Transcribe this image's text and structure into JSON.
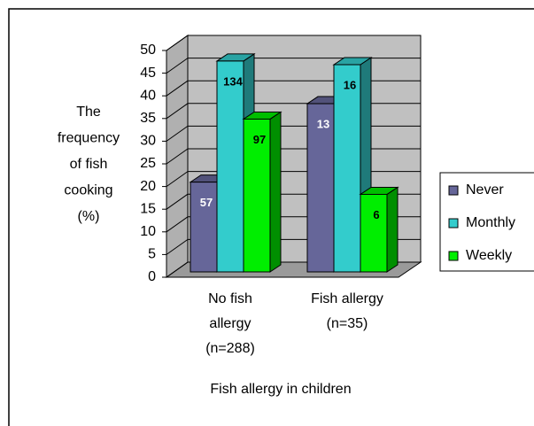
{
  "chart_data": {
    "type": "bar3d",
    "ylabel": [
      "The",
      "frequency",
      "of fish",
      "cooking",
      "(%)"
    ],
    "xlabel": "Fish allergy in children",
    "categories": [
      [
        "No fish",
        "allergy",
        "(n=288)"
      ],
      [
        "Fish allergy",
        "(n=35)"
      ]
    ],
    "series": [
      {
        "name": "Never",
        "color": "#666699",
        "label_color": "#ffffff",
        "values": [
          19.8,
          37.1
        ],
        "counts": [
          57,
          13
        ]
      },
      {
        "name": "Monthly",
        "color": "#33cccc",
        "label_color": "#000000",
        "values": [
          46.5,
          45.7
        ],
        "counts": [
          134,
          16
        ]
      },
      {
        "name": "Weekly",
        "color": "#00ee00",
        "label_color": "#000000",
        "values": [
          33.7,
          17.1
        ],
        "counts": [
          97,
          6
        ]
      }
    ],
    "ylim": [
      0,
      50
    ],
    "yticks": [
      0,
      5,
      10,
      15,
      20,
      25,
      30,
      35,
      40,
      45,
      50
    ],
    "grid": true,
    "legend": "right"
  }
}
